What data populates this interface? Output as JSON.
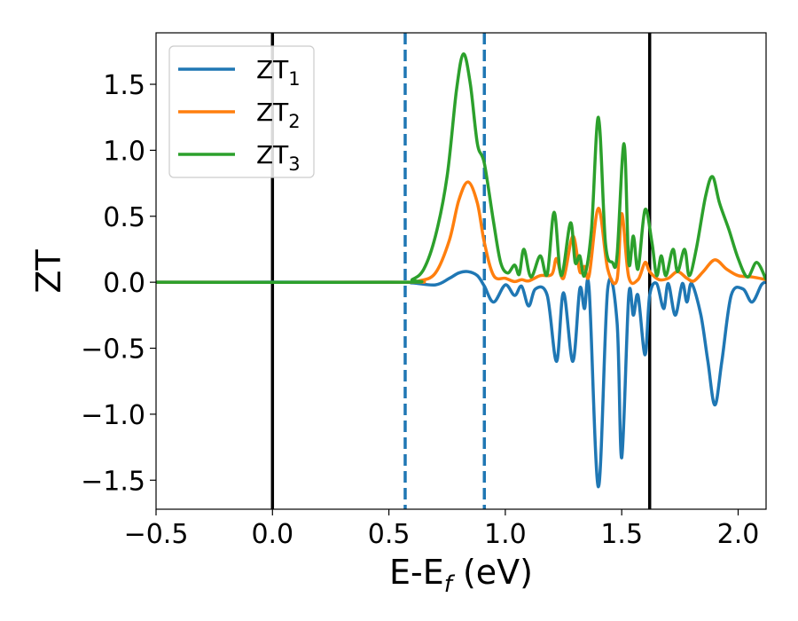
{
  "chart_data": {
    "type": "line",
    "title": "",
    "xlabel": "E-E",
    "xlabel_sub": "f",
    "xlabel_unit": " (eV)",
    "ylabel": "ZT",
    "xlim": [
      -0.5,
      2.12
    ],
    "ylim": [
      -1.72,
      1.89
    ],
    "x_ticks": [
      -0.5,
      0.0,
      0.5,
      1.0,
      1.5,
      2.0
    ],
    "x_tick_labels": [
      "−0.5",
      "0.0",
      "0.5",
      "1.0",
      "1.5",
      "2.0"
    ],
    "y_ticks": [
      -1.5,
      -1.0,
      -0.5,
      0.0,
      0.5,
      1.0,
      1.5
    ],
    "y_tick_labels": [
      "−1.5",
      "−1.0",
      "−0.5",
      "0.0",
      "0.5",
      "1.0",
      "1.5"
    ],
    "grid": false,
    "legend_position": "top-left",
    "vertical_lines": [
      {
        "x": 0.0,
        "style": "solid",
        "color": "#000000"
      },
      {
        "x": 0.57,
        "style": "dashed",
        "color": "#1f77b4"
      },
      {
        "x": 0.91,
        "style": "dashed",
        "color": "#1f77b4"
      },
      {
        "x": 1.62,
        "style": "solid",
        "color": "#000000"
      }
    ],
    "series": [
      {
        "name": "ZT",
        "name_sub": "1",
        "color": "#1f77b4",
        "points": [
          [
            -0.5,
            0
          ],
          [
            0.5,
            0
          ],
          [
            0.6,
            -0.005
          ],
          [
            0.7,
            -0.02
          ],
          [
            0.76,
            0.03
          ],
          [
            0.8,
            0.07
          ],
          [
            0.84,
            0.08
          ],
          [
            0.88,
            0.05
          ],
          [
            0.91,
            -0.03
          ],
          [
            0.95,
            -0.15
          ],
          [
            1.0,
            -0.02
          ],
          [
            1.04,
            -0.1
          ],
          [
            1.07,
            -0.03
          ],
          [
            1.1,
            -0.18
          ],
          [
            1.13,
            -0.05
          ],
          [
            1.18,
            -0.1
          ],
          [
            1.22,
            -0.6
          ],
          [
            1.25,
            -0.08
          ],
          [
            1.29,
            -0.6
          ],
          [
            1.32,
            -0.05
          ],
          [
            1.34,
            -0.2
          ],
          [
            1.36,
            -0.05
          ],
          [
            1.4,
            -1.55
          ],
          [
            1.44,
            -0.05
          ],
          [
            1.48,
            -0.3
          ],
          [
            1.5,
            -1.33
          ],
          [
            1.53,
            -0.1
          ],
          [
            1.55,
            -0.25
          ],
          [
            1.57,
            -0.1
          ],
          [
            1.6,
            -0.55
          ],
          [
            1.62,
            -0.1
          ],
          [
            1.65,
            -0.01
          ],
          [
            1.68,
            -0.2
          ],
          [
            1.7,
            -0.01
          ],
          [
            1.73,
            -0.25
          ],
          [
            1.76,
            -0.01
          ],
          [
            1.78,
            -0.15
          ],
          [
            1.8,
            -0.01
          ],
          [
            1.84,
            -0.25
          ],
          [
            1.87,
            -0.6
          ],
          [
            1.9,
            -0.93
          ],
          [
            1.93,
            -0.6
          ],
          [
            1.97,
            -0.1
          ],
          [
            2.02,
            -0.05
          ],
          [
            2.06,
            -0.15
          ],
          [
            2.1,
            -0.02
          ],
          [
            2.12,
            0
          ]
        ]
      },
      {
        "name": "ZT",
        "name_sub": "2",
        "color": "#ff7f0e",
        "points": [
          [
            -0.5,
            0
          ],
          [
            0.55,
            0
          ],
          [
            0.63,
            0.01
          ],
          [
            0.7,
            0.07
          ],
          [
            0.76,
            0.32
          ],
          [
            0.8,
            0.62
          ],
          [
            0.84,
            0.76
          ],
          [
            0.88,
            0.6
          ],
          [
            0.91,
            0.3
          ],
          [
            0.95,
            0.05
          ],
          [
            1.0,
            0.03
          ],
          [
            1.04,
            0.005
          ],
          [
            1.07,
            0.02
          ],
          [
            1.1,
            0.01
          ],
          [
            1.15,
            0.05
          ],
          [
            1.2,
            0.06
          ],
          [
            1.22,
            0.18
          ],
          [
            1.25,
            0.03
          ],
          [
            1.29,
            0.35
          ],
          [
            1.32,
            0.08
          ],
          [
            1.34,
            0.12
          ],
          [
            1.36,
            0.05
          ],
          [
            1.4,
            0.56
          ],
          [
            1.44,
            0.1
          ],
          [
            1.48,
            0.02
          ],
          [
            1.5,
            0.52
          ],
          [
            1.53,
            0.04
          ],
          [
            1.57,
            0.02
          ],
          [
            1.6,
            0.15
          ],
          [
            1.62,
            0.08
          ],
          [
            1.66,
            0.02
          ],
          [
            1.7,
            0.03
          ],
          [
            1.74,
            0.08
          ],
          [
            1.78,
            0.03
          ],
          [
            1.81,
            0.01
          ],
          [
            1.85,
            0.08
          ],
          [
            1.9,
            0.17
          ],
          [
            1.95,
            0.1
          ],
          [
            2.0,
            0.05
          ],
          [
            2.06,
            0.04
          ],
          [
            2.12,
            0.02
          ]
        ]
      },
      {
        "name": "ZT",
        "name_sub": "3",
        "color": "#2ca02c",
        "points": [
          [
            -0.5,
            0
          ],
          [
            0.55,
            0
          ],
          [
            0.6,
            0.02
          ],
          [
            0.65,
            0.1
          ],
          [
            0.7,
            0.35
          ],
          [
            0.75,
            0.8
          ],
          [
            0.79,
            1.45
          ],
          [
            0.82,
            1.73
          ],
          [
            0.85,
            1.5
          ],
          [
            0.88,
            1.05
          ],
          [
            0.91,
            0.9
          ],
          [
            0.95,
            0.45
          ],
          [
            0.98,
            0.15
          ],
          [
            1.01,
            0.07
          ],
          [
            1.04,
            0.13
          ],
          [
            1.06,
            0.06
          ],
          [
            1.08,
            0.25
          ],
          [
            1.11,
            0.04
          ],
          [
            1.15,
            0.2
          ],
          [
            1.18,
            0.06
          ],
          [
            1.21,
            0.53
          ],
          [
            1.24,
            0.05
          ],
          [
            1.28,
            0.45
          ],
          [
            1.3,
            0.15
          ],
          [
            1.32,
            0.2
          ],
          [
            1.34,
            0.05
          ],
          [
            1.37,
            0.4
          ],
          [
            1.4,
            1.25
          ],
          [
            1.43,
            0.3
          ],
          [
            1.46,
            0.15
          ],
          [
            1.48,
            0.2
          ],
          [
            1.51,
            1.05
          ],
          [
            1.53,
            0.15
          ],
          [
            1.55,
            0.35
          ],
          [
            1.57,
            0.1
          ],
          [
            1.6,
            0.55
          ],
          [
            1.63,
            0.3
          ],
          [
            1.65,
            0.05
          ],
          [
            1.67,
            0.2
          ],
          [
            1.69,
            0.05
          ],
          [
            1.72,
            0.25
          ],
          [
            1.74,
            0.08
          ],
          [
            1.77,
            0.25
          ],
          [
            1.79,
            0.05
          ],
          [
            1.82,
            0.25
          ],
          [
            1.86,
            0.65
          ],
          [
            1.89,
            0.8
          ],
          [
            1.92,
            0.6
          ],
          [
            1.96,
            0.4
          ],
          [
            2.0,
            0.18
          ],
          [
            2.04,
            0.04
          ],
          [
            2.08,
            0.15
          ],
          [
            2.12,
            0.02
          ]
        ]
      }
    ]
  }
}
